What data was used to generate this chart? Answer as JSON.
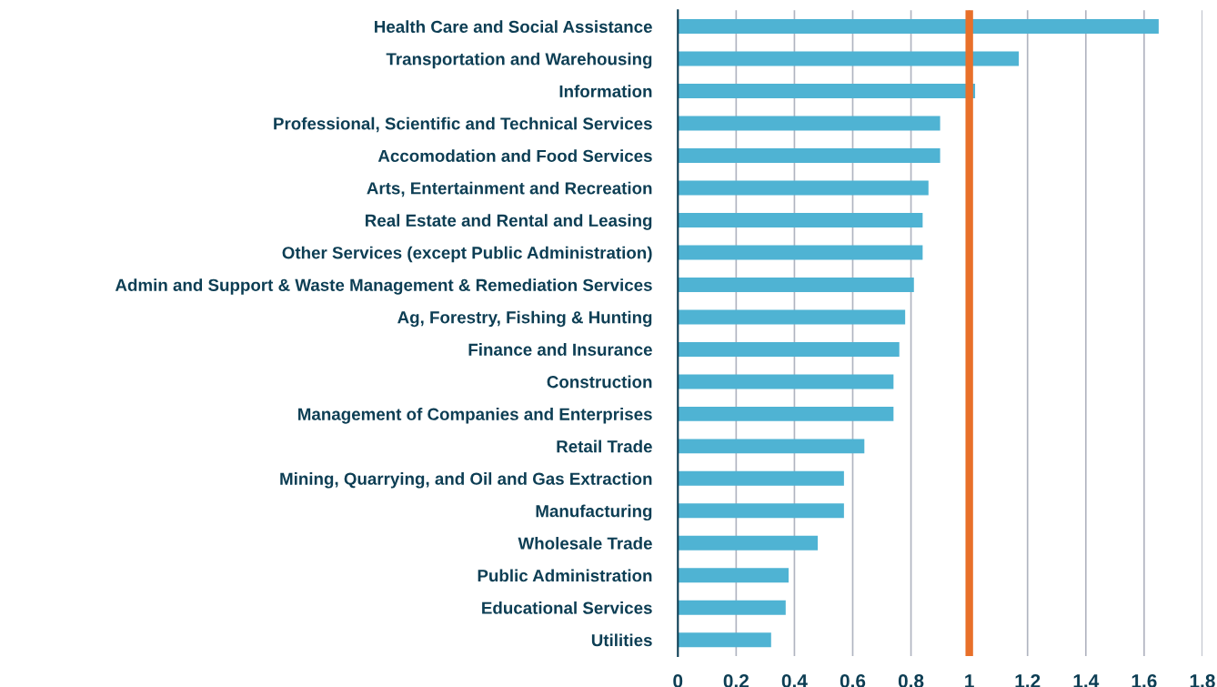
{
  "chart_data": {
    "type": "bar",
    "orientation": "horizontal",
    "categories": [
      "Health Care and Social Assistance",
      "Transportation and Warehousing",
      "Information",
      "Professional, Scientific and Technical Services",
      "Accomodation and Food Services",
      "Arts, Entertainment and Recreation",
      "Real Estate and Rental and Leasing",
      "Other Services (except Public Administration)",
      "Admin and Support & Waste Management & Remediation Services",
      "Ag, Forestry, Fishing & Hunting",
      "Finance and Insurance",
      "Construction",
      "Management of Companies and Enterprises",
      "Retail Trade",
      "Mining, Quarrying, and Oil and Gas Extraction",
      "Manufacturing",
      "Wholesale Trade",
      "Public Administration",
      "Educational Services",
      "Utilities"
    ],
    "values": [
      1.65,
      1.17,
      1.02,
      0.9,
      0.9,
      0.86,
      0.84,
      0.84,
      0.81,
      0.78,
      0.76,
      0.74,
      0.74,
      0.64,
      0.57,
      0.57,
      0.48,
      0.38,
      0.37,
      0.32
    ],
    "color": "#4fb3d3",
    "xlim": [
      0,
      1.8
    ],
    "xticks": [
      0,
      0.2,
      0.4,
      0.6,
      0.8,
      1,
      1.2,
      1.4,
      1.6,
      1.8
    ],
    "grid": "x",
    "ref_lines": [
      {
        "axis": "x",
        "value": 1,
        "color": "#e8702a"
      }
    ]
  }
}
